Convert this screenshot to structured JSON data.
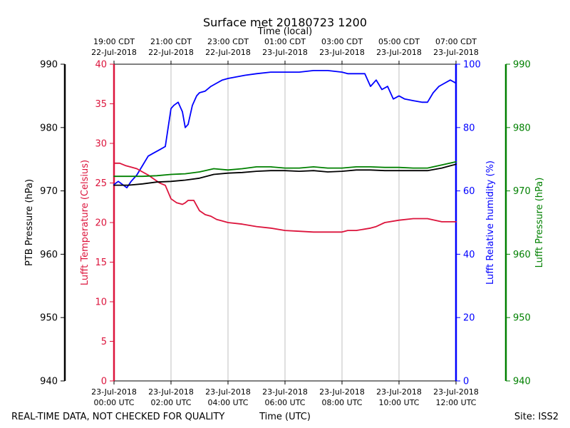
{
  "chart_data": {
    "type": "line",
    "title": "Surface met 20180723 1200",
    "top_axis_label": "Time (local)",
    "bottom_axis_label": "Time (UTC)",
    "footer_left": "REAL-TIME DATA, NOT CHECKED FOR QUALITY",
    "footer_right": "Site: ISS2",
    "x_range_hours": [
      0,
      12
    ],
    "bottom_ticks": [
      {
        "hour": 0,
        "line1": "23-Jul-2018",
        "line2": "00:00 UTC"
      },
      {
        "hour": 2,
        "line1": "23-Jul-2018",
        "line2": "02:00 UTC"
      },
      {
        "hour": 4,
        "line1": "23-Jul-2018",
        "line2": "04:00 UTC"
      },
      {
        "hour": 6,
        "line1": "23-Jul-2018",
        "line2": "06:00 UTC"
      },
      {
        "hour": 8,
        "line1": "23-Jul-2018",
        "line2": "08:00 UTC"
      },
      {
        "hour": 10,
        "line1": "23-Jul-2018",
        "line2": "10:00 UTC"
      },
      {
        "hour": 12,
        "line1": "23-Jul-2018",
        "line2": "12:00 UTC"
      }
    ],
    "top_ticks": [
      {
        "hour": 0,
        "line1": "19:00 CDT",
        "line2": "22-Jul-2018"
      },
      {
        "hour": 2,
        "line1": "21:00 CDT",
        "line2": "22-Jul-2018"
      },
      {
        "hour": 4,
        "line1": "23:00 CDT",
        "line2": "22-Jul-2018"
      },
      {
        "hour": 6,
        "line1": "01:00 CDT",
        "line2": "23-Jul-2018"
      },
      {
        "hour": 8,
        "line1": "03:00 CDT",
        "line2": "23-Jul-2018"
      },
      {
        "hour": 10,
        "line1": "05:00 CDT",
        "line2": "23-Jul-2018"
      },
      {
        "hour": 12,
        "line1": "07:00 CDT",
        "line2": "23-Jul-2018"
      }
    ],
    "axes": {
      "ptb_pressure": {
        "label": "PTB Pressure (hPa)",
        "range": [
          940,
          990
        ],
        "ticks": [
          940,
          950,
          960,
          970,
          980,
          990
        ],
        "color": "#000000"
      },
      "temperature": {
        "label": "Lufft Temperature (Celsius)",
        "range": [
          0,
          40
        ],
        "ticks": [
          0,
          5,
          10,
          15,
          20,
          25,
          30,
          35,
          40
        ],
        "color": "#dc143c"
      },
      "humidity": {
        "label": "Lufft Relative humidity (%)",
        "range": [
          0,
          100
        ],
        "ticks": [
          0,
          20,
          40,
          60,
          80,
          100
        ],
        "color": "#0000ff"
      },
      "lufft_pressure": {
        "label": "Lufft Pressure (hPa)",
        "range": [
          940,
          990
        ],
        "ticks": [
          940,
          950,
          960,
          970,
          980,
          990
        ],
        "color": "#008000"
      }
    },
    "series": [
      {
        "name": "Lufft Relative humidity",
        "axis": "humidity",
        "color": "#0000ff",
        "x": [
          0,
          0.15,
          0.3,
          0.45,
          0.6,
          0.8,
          1.0,
          1.2,
          1.4,
          1.6,
          1.8,
          1.9,
          2.0,
          2.1,
          2.25,
          2.4,
          2.5,
          2.6,
          2.75,
          2.9,
          3.0,
          3.2,
          3.4,
          3.6,
          3.8,
          4.0,
          4.3,
          4.6,
          5.0,
          5.5,
          6.0,
          6.5,
          7.0,
          7.5,
          8.0,
          8.2,
          8.5,
          8.8,
          9.0,
          9.2,
          9.4,
          9.6,
          9.8,
          10.0,
          10.2,
          10.5,
          10.8,
          11.0,
          11.2,
          11.4,
          11.6,
          11.8,
          12.0
        ],
        "y": [
          62,
          63,
          62,
          61,
          63,
          65,
          68,
          71,
          72,
          73,
          74,
          80,
          86,
          87,
          88,
          85,
          80,
          81,
          87,
          90,
          91,
          91.5,
          93,
          94,
          95,
          95.5,
          96,
          96.5,
          97,
          97.5,
          97.5,
          97.5,
          98,
          98,
          97.5,
          97,
          97,
          97,
          93,
          95,
          92,
          93,
          89,
          90,
          89,
          88.5,
          88,
          88,
          91,
          93,
          94,
          95,
          94
        ]
      },
      {
        "name": "Lufft Temperature",
        "axis": "temperature",
        "color": "#dc143c",
        "x": [
          0,
          0.2,
          0.4,
          0.6,
          0.8,
          1.0,
          1.2,
          1.4,
          1.6,
          1.8,
          2.0,
          2.2,
          2.4,
          2.5,
          2.6,
          2.8,
          3.0,
          3.2,
          3.4,
          3.6,
          3.8,
          4.0,
          4.5,
          5.0,
          5.5,
          6.0,
          6.5,
          7.0,
          7.5,
          8.0,
          8.2,
          8.5,
          9.0,
          9.2,
          9.5,
          10.0,
          10.5,
          11.0,
          11.5,
          12.0
        ],
        "y": [
          27.5,
          27.5,
          27.2,
          27.0,
          26.8,
          26.4,
          26.0,
          25.5,
          25.0,
          24.7,
          23.0,
          22.5,
          22.3,
          22.5,
          22.8,
          22.8,
          21.5,
          21.0,
          20.8,
          20.4,
          20.2,
          20.0,
          19.8,
          19.5,
          19.3,
          19.0,
          18.9,
          18.8,
          18.8,
          18.8,
          19.0,
          19.0,
          19.3,
          19.5,
          20.0,
          20.3,
          20.5,
          20.5,
          20.1,
          20.1
        ]
      },
      {
        "name": "PTB Pressure",
        "axis": "ptb_pressure",
        "color": "#000000",
        "x": [
          0,
          0.5,
          1.0,
          1.5,
          2.0,
          2.5,
          3.0,
          3.5,
          4.0,
          4.5,
          5.0,
          5.5,
          6.0,
          6.5,
          7.0,
          7.5,
          8.0,
          8.5,
          9.0,
          9.5,
          10.0,
          10.5,
          11.0,
          11.5,
          12.0
        ],
        "y": [
          970.9,
          970.9,
          971.1,
          971.4,
          971.5,
          971.7,
          972.0,
          972.6,
          972.8,
          972.9,
          973.1,
          973.2,
          973.2,
          973.1,
          973.2,
          973.0,
          973.1,
          973.3,
          973.3,
          973.2,
          973.2,
          973.2,
          973.2,
          973.6,
          974.2
        ]
      },
      {
        "name": "Lufft Pressure",
        "axis": "lufft_pressure",
        "color": "#008000",
        "x": [
          0,
          0.5,
          1.0,
          1.5,
          2.0,
          2.5,
          3.0,
          3.5,
          4.0,
          4.5,
          5.0,
          5.5,
          6.0,
          6.5,
          7.0,
          7.5,
          8.0,
          8.5,
          9.0,
          9.5,
          10.0,
          10.5,
          11.0,
          11.5,
          12.0
        ],
        "y": [
          972.3,
          972.3,
          972.3,
          972.4,
          972.6,
          972.7,
          973.0,
          973.5,
          973.3,
          973.5,
          973.8,
          973.8,
          973.6,
          973.6,
          973.8,
          973.6,
          973.6,
          973.8,
          973.8,
          973.7,
          973.7,
          973.6,
          973.6,
          974.1,
          974.6
        ]
      }
    ]
  }
}
